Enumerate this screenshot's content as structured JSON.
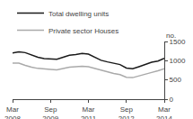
{
  "chart_data": {
    "type": "line",
    "ylabel": "no.",
    "categories": [
      "Mar\n2008",
      null,
      null,
      null,
      null,
      null,
      "Sep\n2009",
      null,
      null,
      null,
      null,
      null,
      "Mar\n2011",
      null,
      null,
      null,
      null,
      null,
      "Sep\n2012",
      null,
      null,
      null,
      null,
      null,
      "Mar\n2014"
    ],
    "series": [
      {
        "name": "Total dwelling units",
        "color": "#1a1a1a",
        "values": [
          1200,
          1230,
          1210,
          1150,
          1090,
          1055,
          1050,
          1040,
          1090,
          1140,
          1160,
          1190,
          1170,
          1090,
          1010,
          970,
          940,
          900,
          810,
          790,
          845,
          900,
          960,
          990,
          1060
        ]
      },
      {
        "name": "Private sector Houses",
        "color": "#aaaaaa",
        "values": [
          940,
          935,
          880,
          830,
          800,
          780,
          775,
          760,
          800,
          830,
          845,
          855,
          845,
          800,
          755,
          710,
          670,
          640,
          570,
          560,
          600,
          645,
          695,
          740,
          790
        ]
      }
    ],
    "ylim": [
      0,
      1500
    ],
    "yticks": [
      0,
      500,
      1000,
      1500
    ],
    "grid": false,
    "legend": "upper left"
  }
}
